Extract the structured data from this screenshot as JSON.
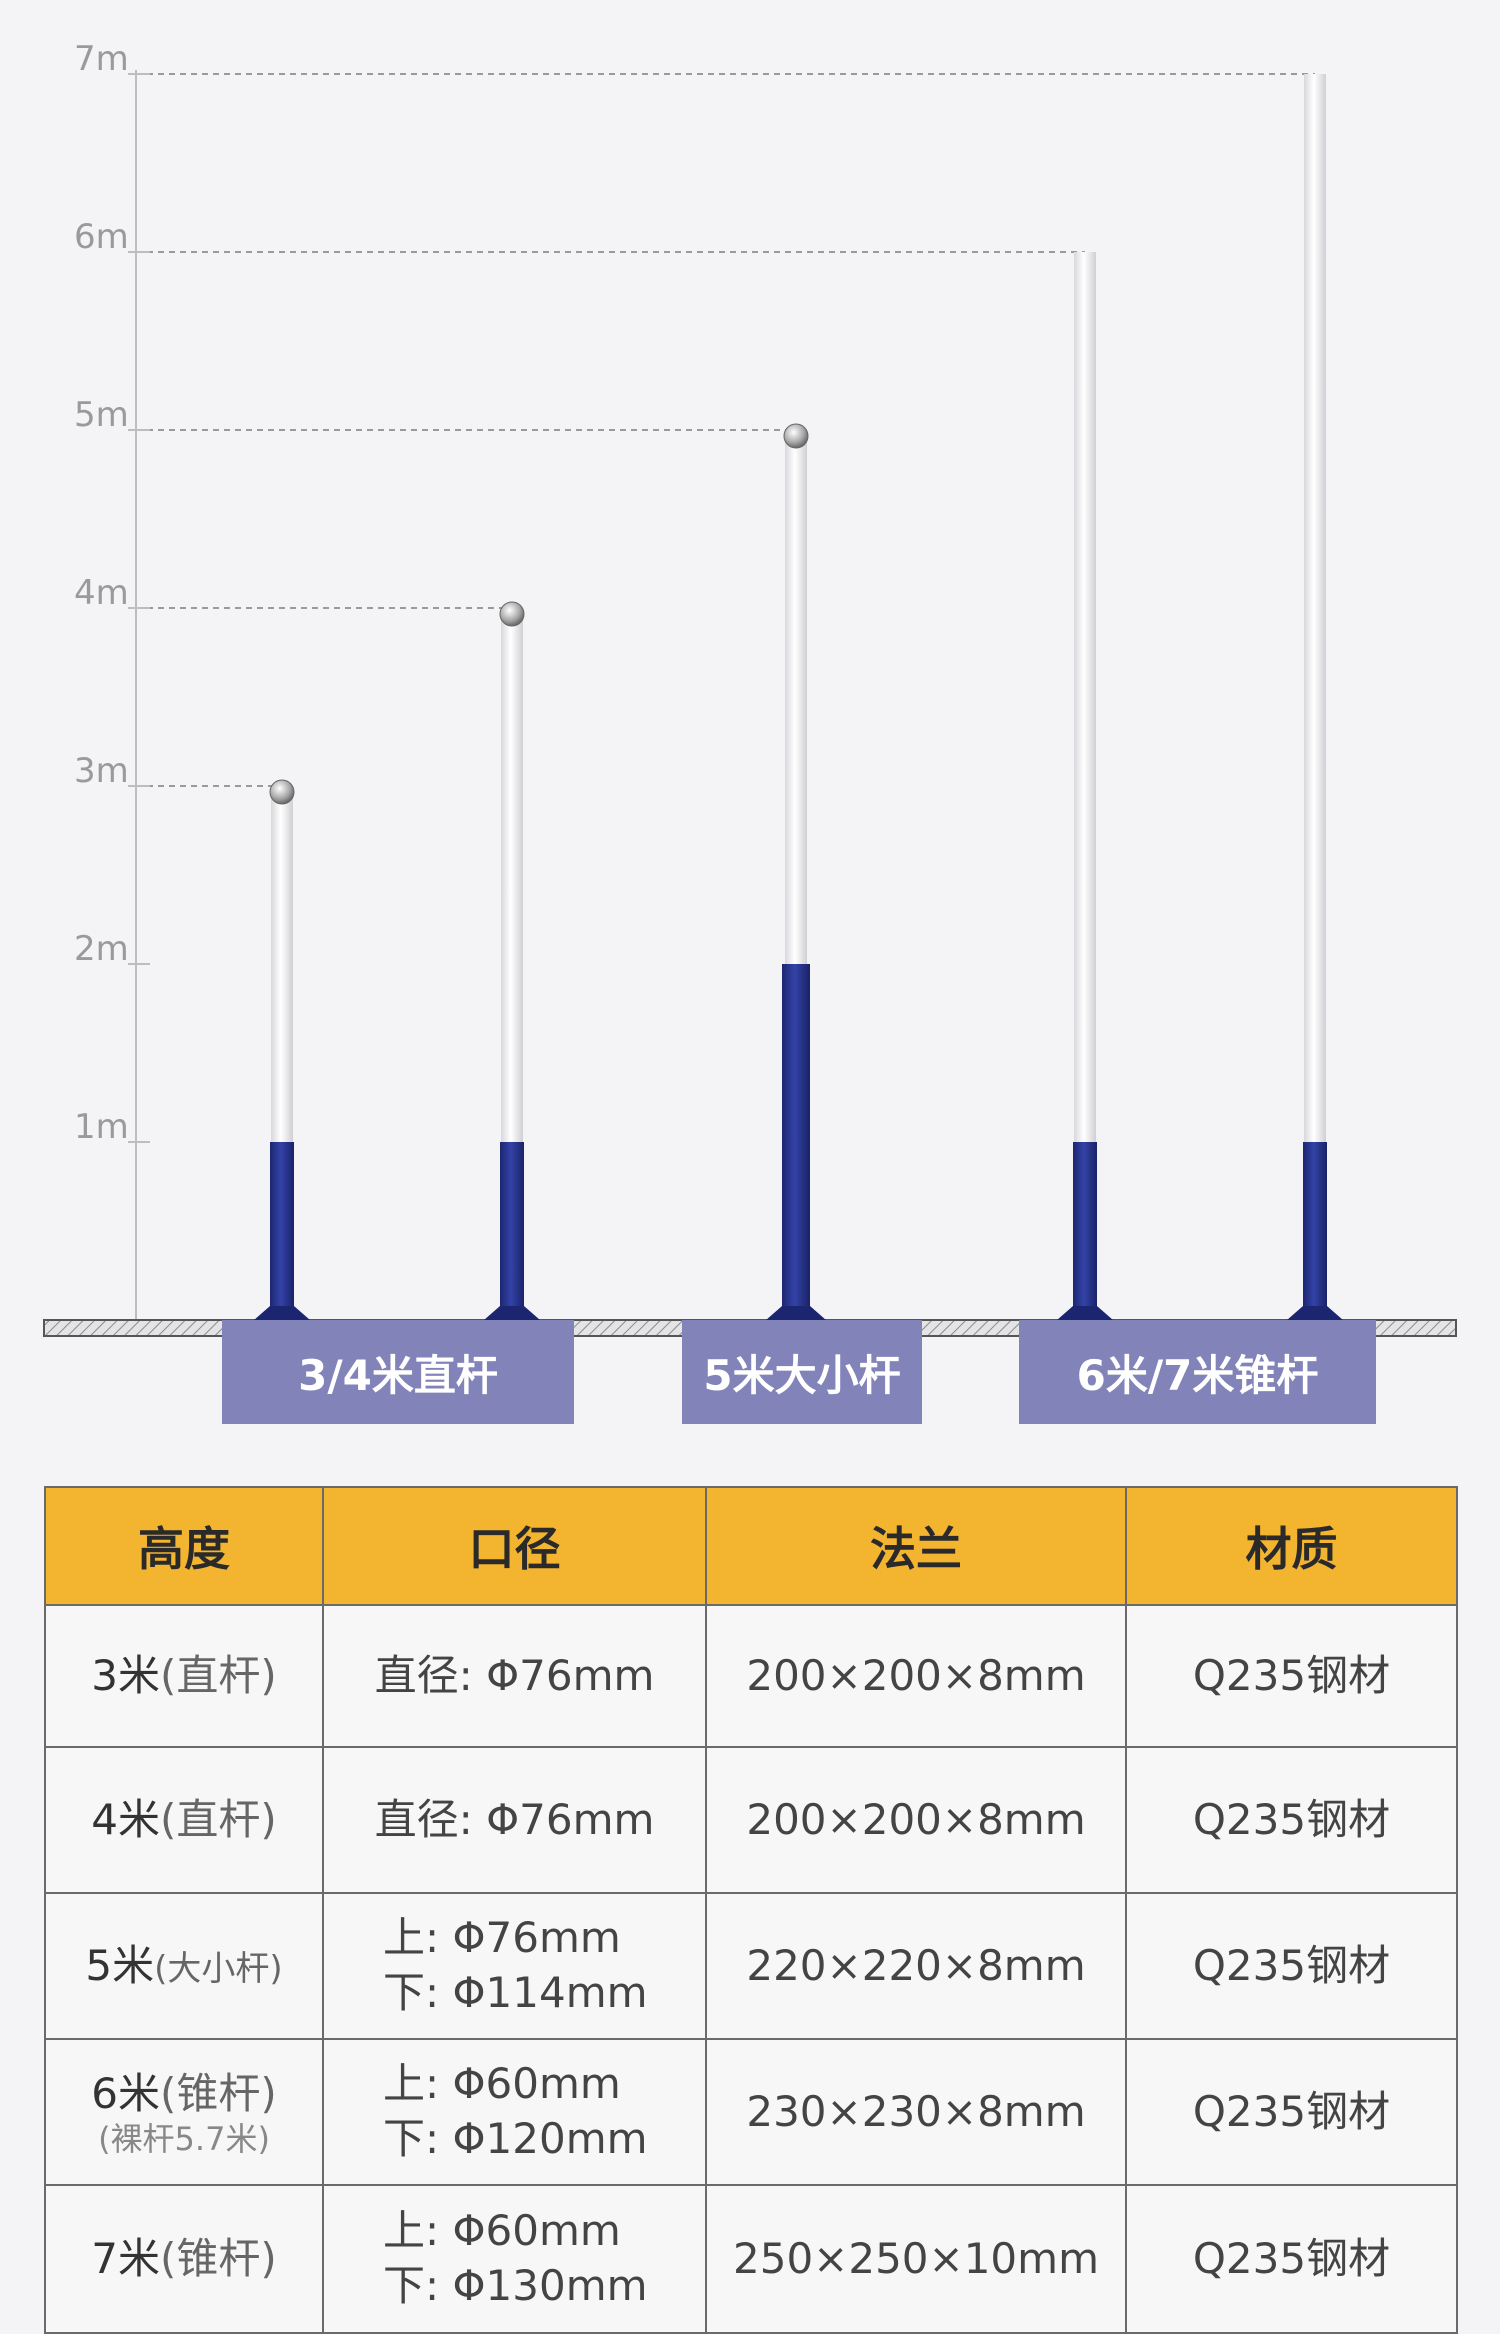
{
  "axis": {
    "labels": [
      "7m",
      "6m",
      "5m",
      "4m",
      "3m",
      "2m",
      "1m"
    ],
    "max": 7
  },
  "poles": [
    {
      "category": "3/4米直杆",
      "height_m": 3,
      "base_m": 1,
      "cap": true
    },
    {
      "category": "3/4米直杆",
      "height_m": 4,
      "base_m": 1,
      "cap": true
    },
    {
      "category": "5米大小杆",
      "height_m": 5,
      "base_m": 2,
      "cap": true
    },
    {
      "category": "6米/7米锥杆",
      "height_m": 6,
      "base_m": 1,
      "cap": false
    },
    {
      "category": "6米/7米锥杆",
      "height_m": 7,
      "base_m": 1,
      "cap": false
    }
  ],
  "categories": [
    "3/4米直杆",
    "5米大小杆",
    "6米/7米锥杆"
  ],
  "colors": {
    "pole_base": "#283590",
    "pole_top": "#f2f2f2",
    "label_bg": "#8283b9",
    "table_header": "#f3b430",
    "background": "#f4f4f6"
  },
  "table": {
    "headers": [
      "高度",
      "口径",
      "法兰",
      "材质"
    ],
    "rows": [
      {
        "height_main": "3米",
        "height_paren": "(直杆)",
        "height_sub": "",
        "diameter": [
          "直径: Φ76mm"
        ],
        "flange": "200×200×8mm",
        "material": "Q235钢材"
      },
      {
        "height_main": "4米",
        "height_paren": "(直杆)",
        "height_sub": "",
        "diameter": [
          "直径: Φ76mm"
        ],
        "flange": "200×200×8mm",
        "material": "Q235钢材"
      },
      {
        "height_main": "5米",
        "height_paren": "(大小杆)",
        "height_sub": "",
        "diameter": [
          "上: Φ76mm",
          "下: Φ114mm"
        ],
        "flange": "220×220×8mm",
        "material": "Q235钢材"
      },
      {
        "height_main": "6米",
        "height_paren": "(锥杆)",
        "height_sub": "(裸杆5.7米)",
        "diameter": [
          "上: Φ60mm",
          "下: Φ120mm"
        ],
        "flange": "230×230×8mm",
        "material": "Q235钢材"
      },
      {
        "height_main": "7米",
        "height_paren": "(锥杆)",
        "height_sub": "",
        "diameter": [
          "上: Φ60mm",
          "下: Φ130mm"
        ],
        "flange": "250×250×10mm",
        "material": "Q235钢材"
      }
    ]
  }
}
